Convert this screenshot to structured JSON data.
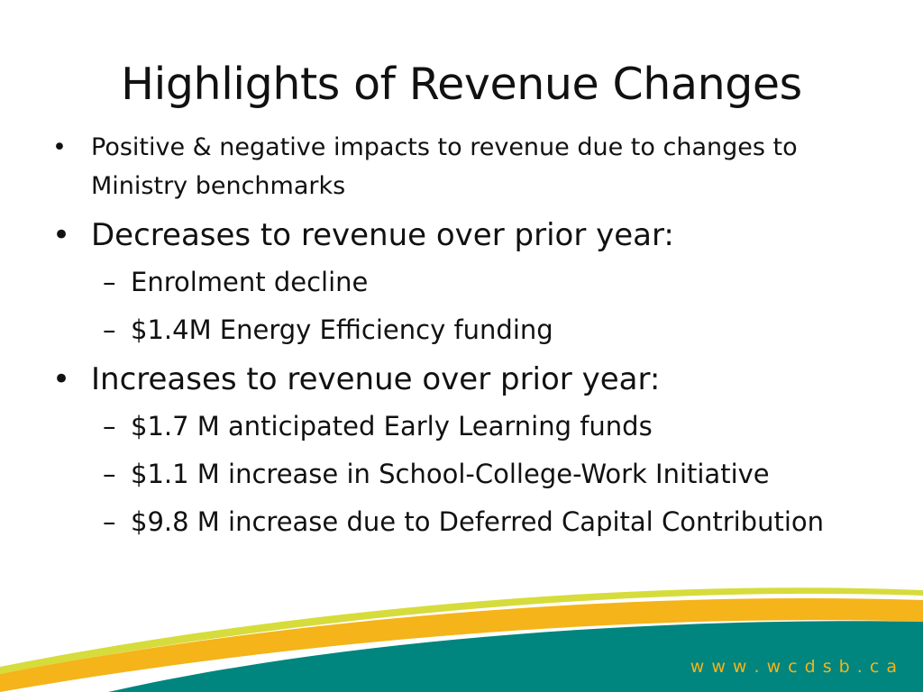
{
  "slide": {
    "title": "Highlights of Revenue Changes",
    "bullets": [
      {
        "text": "Positive & negative impacts to revenue due to changes to Ministry benchmarks"
      },
      {
        "text": "Decreases to revenue over prior year:",
        "sub": [
          "Enrolment decline",
          "$1.4M Energy Efficiency funding"
        ]
      },
      {
        "text": "Increases to revenue over prior year:",
        "sub": [
          "$1.7 M anticipated Early Learning funds",
          "$1.1 M increase in School-College-Work Initiative",
          "$9.8 M increase due to Deferred Capital Contribution"
        ]
      }
    ],
    "bullet_glyph": "•",
    "dash_glyph": "–",
    "footer_url": "w w w . w c d s b . c a"
  },
  "colors": {
    "teal": "#00857f",
    "gold": "#f4b41a",
    "yellow_green": "#d6dc3b",
    "text": "#111111"
  }
}
